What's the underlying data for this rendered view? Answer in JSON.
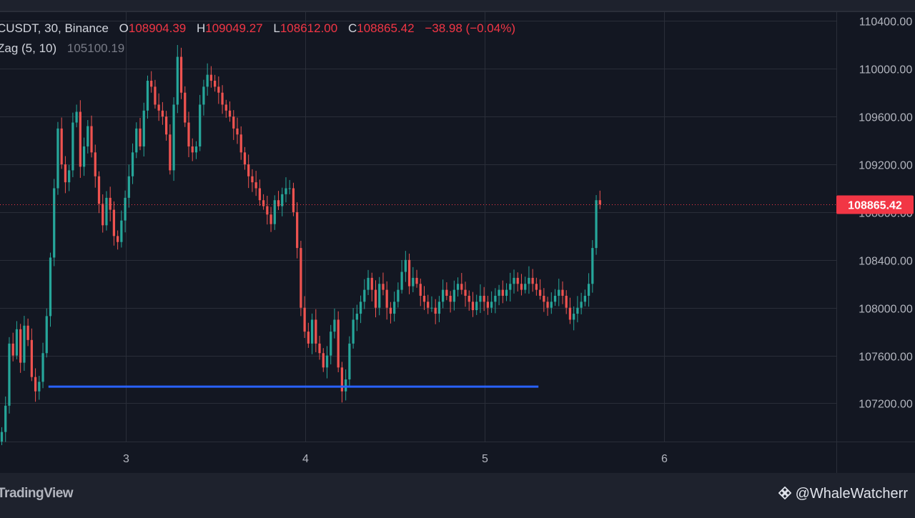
{
  "legend": {
    "symbol": "CUSDT, 30, Binance",
    "open_label": "O",
    "open": "108904.39",
    "high_label": "H",
    "high": "109049.27",
    "low_label": "L",
    "low": "108612.00",
    "close_label": "C",
    "close": "108865.42",
    "change": "−38.98 (−0.04%)",
    "indicator_name": "Zag (5, 10)",
    "indicator_value": "105100.19"
  },
  "footer": {
    "logo_text": "TradingView",
    "watermark": "@WhaleWatcherr"
  },
  "colors": {
    "background": "#131722",
    "frame": "#1e222d",
    "grid": "#2a2e39",
    "up": "#26a69a",
    "down": "#ef5350",
    "level_line": "#2962ff",
    "price_tag": "#f23645",
    "axis_text": "#b2b5be"
  },
  "chart_data": {
    "type": "candlestick",
    "title": "",
    "y_ticks": [
      "107200.00",
      "107600.00",
      "108000.00",
      "108400.00",
      "108800.00",
      "109200.00",
      "109600.00",
      "110000.00",
      "110400.00"
    ],
    "x_ticks": [
      "3",
      "4",
      "5",
      "6"
    ],
    "ylim": [
      106880,
      110480
    ],
    "xlim": [
      2.3,
      6.96
    ],
    "last_price": 108865.42,
    "last_price_label": "108865.42",
    "support_level": {
      "price": 107340,
      "x_start": 2.57,
      "x_end": 5.3
    },
    "candle_interval_days": 0.02083,
    "closes": [
      106960,
      107180,
      107700,
      107600,
      107820,
      107540,
      107850,
      107730,
      107420,
      107300,
      107380,
      107620,
      107930,
      108420,
      109000,
      109500,
      109200,
      109050,
      109150,
      109550,
      109640,
      109180,
      109350,
      109520,
      109300,
      109100,
      108870,
      108690,
      108920,
      108820,
      108600,
      108550,
      108730,
      108920,
      109100,
      109300,
      109500,
      109350,
      109650,
      109900,
      109850,
      109700,
      109650,
      109600,
      109450,
      109150,
      109700,
      110100,
      109800,
      109550,
      109350,
      109300,
      109350,
      109700,
      109850,
      109950,
      109900,
      109850,
      109800,
      109700,
      109650,
      109600,
      109500,
      109450,
      109300,
      109200,
      109100,
      109050,
      109000,
      108900,
      108850,
      108780,
      108700,
      108900,
      108850,
      108950,
      109000,
      109000,
      108800,
      108500,
      108000,
      107800,
      107700,
      107900,
      107700,
      107620,
      107500,
      107600,
      107800,
      107900,
      107500,
      107300,
      107400,
      107700,
      107900,
      107950,
      108050,
      108150,
      108250,
      108150,
      108000,
      108200,
      108150,
      108000,
      107950,
      108050,
      108150,
      108300,
      108400,
      108180,
      108250,
      108200,
      108100,
      108050,
      108000,
      108000,
      107950,
      108050,
      108150,
      108100,
      108050,
      108150,
      108200,
      108150,
      108100,
      108050,
      107980,
      108050,
      108100,
      108050,
      108000,
      108050,
      108100,
      108150,
      108100,
      108150,
      108200,
      108250,
      108200,
      108150,
      108200,
      108250,
      108200,
      108150,
      108100,
      108050,
      108000,
      108050,
      108100,
      108150,
      108100,
      108000,
      107900,
      107950,
      108000,
      108050,
      108100,
      108200,
      108500,
      108900,
      108865.42
    ]
  }
}
